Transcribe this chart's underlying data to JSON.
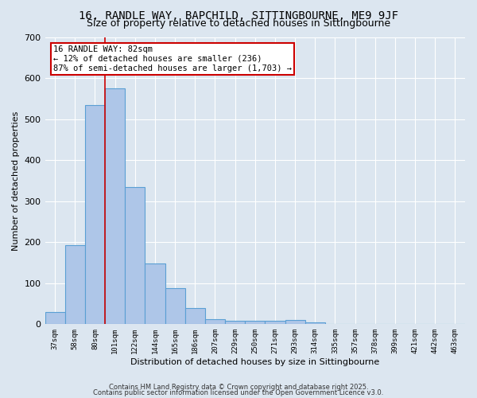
{
  "title1": "16, RANDLE WAY, BAPCHILD, SITTINGBOURNE, ME9 9JF",
  "title2": "Size of property relative to detached houses in Sittingbourne",
  "xlabel": "Distribution of detached houses by size in Sittingbourne",
  "ylabel": "Number of detached properties",
  "categories": [
    "37sqm",
    "58sqm",
    "80sqm",
    "101sqm",
    "122sqm",
    "144sqm",
    "165sqm",
    "186sqm",
    "207sqm",
    "229sqm",
    "250sqm",
    "271sqm",
    "293sqm",
    "314sqm",
    "335sqm",
    "357sqm",
    "378sqm",
    "399sqm",
    "421sqm",
    "442sqm",
    "463sqm"
  ],
  "values": [
    30,
    193,
    535,
    575,
    335,
    148,
    87,
    40,
    12,
    8,
    8,
    8,
    10,
    5,
    0,
    0,
    0,
    0,
    0,
    0,
    0
  ],
  "bar_color": "#aec6e8",
  "bar_edge_color": "#5a9fd4",
  "red_line_index": 2,
  "red_line_color": "#cc0000",
  "annotation_text": "16 RANDLE WAY: 82sqm\n← 12% of detached houses are smaller (236)\n87% of semi-detached houses are larger (1,703) →",
  "annotation_box_color": "#ffffff",
  "annotation_box_edge": "#cc0000",
  "ylim": [
    0,
    700
  ],
  "yticks": [
    0,
    100,
    200,
    300,
    400,
    500,
    600,
    700
  ],
  "background_color": "#dce6f0",
  "title1_fontsize": 10,
  "title2_fontsize": 9,
  "footer1": "Contains HM Land Registry data © Crown copyright and database right 2025.",
  "footer2": "Contains public sector information licensed under the Open Government Licence v3.0.",
  "grid_color": "#ffffff"
}
